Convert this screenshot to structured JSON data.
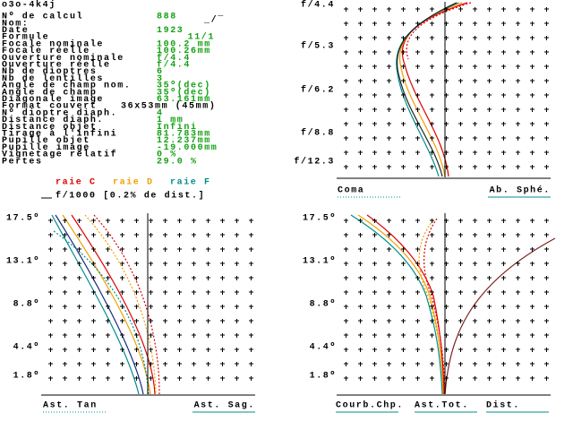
{
  "header": {
    "title": "o3o-4k4j"
  },
  "fields": [
    {
      "label": "Nº de calcul",
      "value": "888"
    },
    {
      "label": "Nom:",
      "value": "_/‾"
    },
    {
      "label": "Date",
      "value": "1923"
    },
    {
      "label": "Formule",
      "value": "11/1"
    },
    {
      "label": "Focale nominale",
      "value": "100.2 mm"
    },
    {
      "label": "Focale réelle",
      "value": "100.26mm"
    },
    {
      "label": "Ouverture nominale",
      "value": "f/4.4"
    },
    {
      "label": "Ouverture réelle",
      "value": "f/4.4"
    },
    {
      "label": "Nb de dioptres",
      "value": "6"
    },
    {
      "label": "Nb de lentilles",
      "value": "3"
    },
    {
      "label": "Angle de champ nom.",
      "value": "35º(dec)"
    },
    {
      "label": "Angle de champ",
      "value": "35º(dec)"
    },
    {
      "label": "Diagonale image",
      "value": "63.161mm"
    },
    {
      "label": "Format couvert",
      "value": "36x53mm (45mm)"
    },
    {
      "label": "Nº dioptre diaph.",
      "value": "4"
    },
    {
      "label": "Distance diaph.",
      "value": "1      mm"
    },
    {
      "label": "Distance objet",
      "value": "Infini"
    },
    {
      "label": "Tirage à l'infini",
      "value": "81.783mm"
    },
    {
      "label": "Pupille objet",
      "value": "12.237mm"
    },
    {
      "label": "Pupille image",
      "value": "-19.000mm"
    },
    {
      "label": "Vignetage relatif",
      "value": "0 %"
    },
    {
      "label": "Pertes",
      "value": "29.0 %"
    }
  ],
  "legend": [
    {
      "text": "raie C",
      "color": "#e00000"
    },
    {
      "text": "raie D",
      "color": "#f0a000"
    },
    {
      "text": "raie F",
      "color": "#008c8c"
    }
  ],
  "scale_note": "f/1000 [0.2% de dist.]",
  "plots": [
    {
      "y_labels": [
        "f/4.4",
        "f/5.3",
        "f/6.2",
        "f/8.8",
        "f/12.3"
      ],
      "bottom_labels": [
        "Coma",
        "Ab. Sphé."
      ]
    },
    {
      "y_labels": [
        "17.5º",
        "13.1º",
        "8.8º",
        "4.4º",
        "1.8º"
      ],
      "bottom_labels": [
        "Ast. Tan",
        "Ast. Sag."
      ]
    },
    {
      "y_labels": [
        "17.5º",
        "13.1º",
        "8.8º",
        "4.4º",
        "1.8º"
      ],
      "bottom_labels": [
        "Courb.Chp.",
        "Ast.Tot.",
        "Dist."
      ]
    }
  ]
}
